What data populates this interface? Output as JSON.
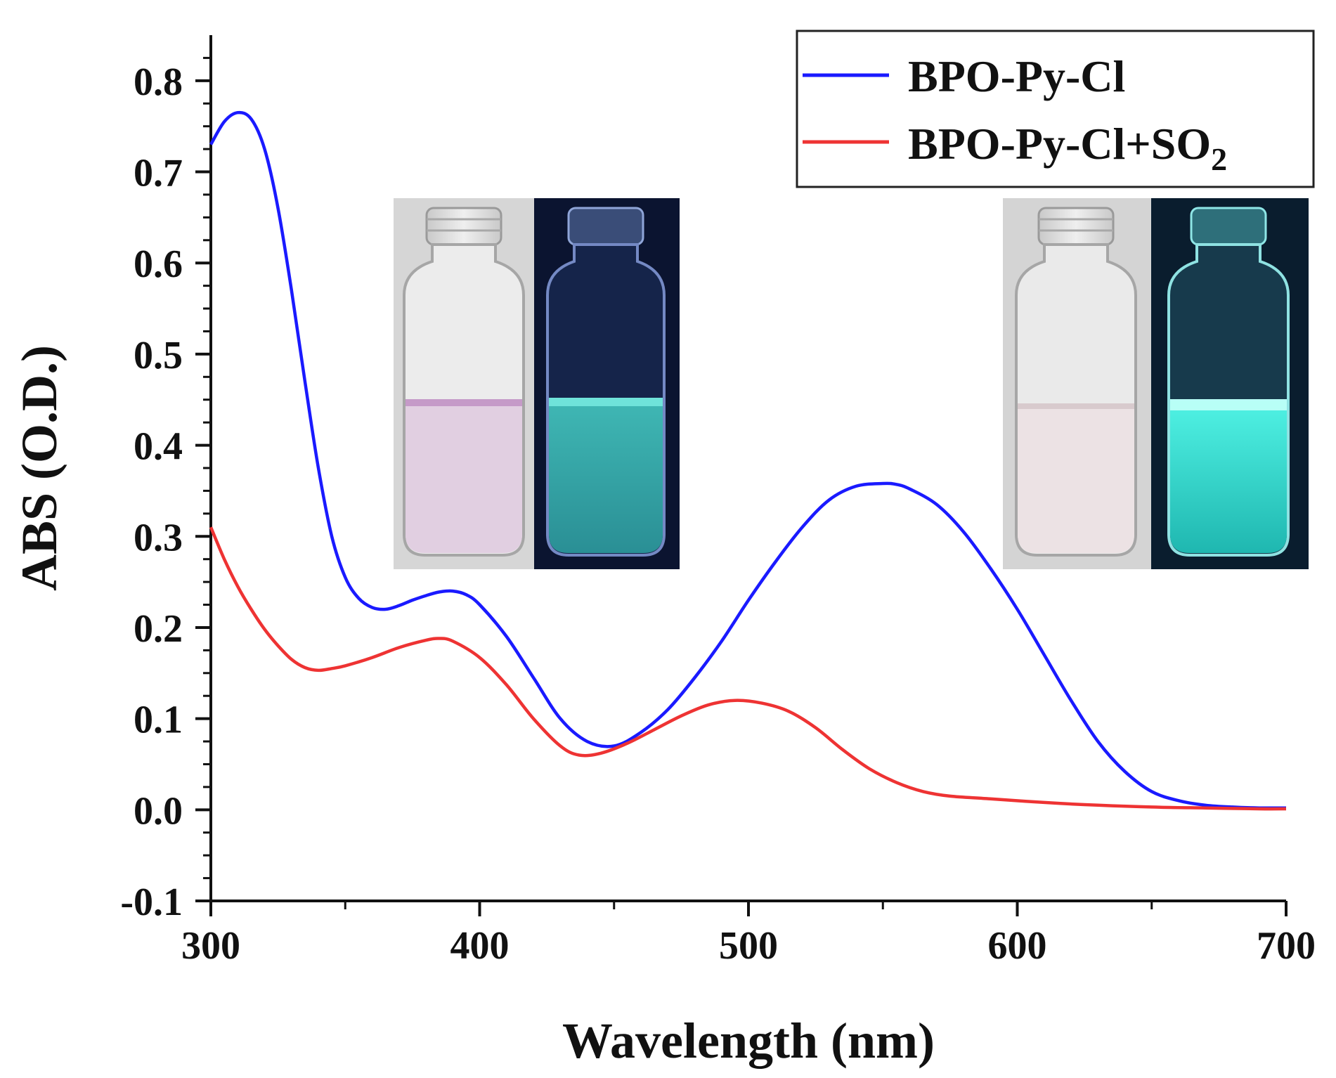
{
  "chart_data": {
    "type": "line",
    "title": "",
    "xlabel": "Wavelength (nm)",
    "ylabel": "ABS (O.D.)",
    "xlim": [
      300,
      700
    ],
    "ylim": [
      -0.1,
      0.85
    ],
    "xticks": [
      300,
      400,
      500,
      600,
      700
    ],
    "xtick_labels": [
      "300",
      "400",
      "500",
      "600",
      "700"
    ],
    "yticks": [
      -0.1,
      0.0,
      0.1,
      0.2,
      0.3,
      0.4,
      0.5,
      0.6,
      0.7,
      0.8
    ],
    "ytick_labels": [
      "-0.1",
      "0.0",
      "0.1",
      "0.2",
      "0.3",
      "0.4",
      "0.5",
      "0.6",
      "0.7",
      "0.8"
    ],
    "grid": false,
    "legend_position": "top-right",
    "series": [
      {
        "name": "BPO-Py-Cl",
        "color": "#1a1aff",
        "x": [
          300,
          305,
          310,
          315,
          320,
          325,
          330,
          335,
          340,
          345,
          350,
          355,
          360,
          365,
          370,
          375,
          380,
          385,
          390,
          395,
          400,
          410,
          420,
          430,
          440,
          450,
          460,
          470,
          480,
          490,
          500,
          510,
          520,
          530,
          540,
          550,
          555,
          560,
          570,
          580,
          590,
          600,
          610,
          620,
          630,
          640,
          650,
          660,
          670,
          680,
          690,
          700
        ],
        "y": [
          0.73,
          0.755,
          0.765,
          0.758,
          0.725,
          0.66,
          0.57,
          0.47,
          0.375,
          0.3,
          0.255,
          0.232,
          0.222,
          0.22,
          0.224,
          0.23,
          0.235,
          0.239,
          0.24,
          0.236,
          0.225,
          0.19,
          0.145,
          0.1,
          0.075,
          0.07,
          0.085,
          0.11,
          0.145,
          0.185,
          0.23,
          0.272,
          0.31,
          0.34,
          0.355,
          0.358,
          0.357,
          0.352,
          0.335,
          0.305,
          0.265,
          0.22,
          0.17,
          0.12,
          0.075,
          0.042,
          0.02,
          0.01,
          0.005,
          0.003,
          0.002,
          0.002
        ]
      },
      {
        "name": "BPO-Py-Cl+SO2",
        "color": "#ee3333",
        "x": [
          300,
          305,
          310,
          315,
          320,
          325,
          330,
          335,
          340,
          345,
          350,
          360,
          370,
          380,
          385,
          390,
          400,
          410,
          420,
          430,
          437,
          445,
          455,
          465,
          475,
          485,
          495,
          505,
          515,
          525,
          535,
          545,
          555,
          565,
          575,
          590,
          610,
          630,
          650,
          670,
          690,
          700
        ],
        "y": [
          0.31,
          0.275,
          0.245,
          0.22,
          0.198,
          0.18,
          0.165,
          0.156,
          0.153,
          0.155,
          0.158,
          0.167,
          0.178,
          0.186,
          0.188,
          0.185,
          0.167,
          0.137,
          0.1,
          0.07,
          0.06,
          0.062,
          0.073,
          0.088,
          0.103,
          0.115,
          0.12,
          0.117,
          0.108,
          0.09,
          0.066,
          0.045,
          0.03,
          0.02,
          0.015,
          0.012,
          0.008,
          0.005,
          0.003,
          0.002,
          0.001,
          0.001
        ]
      }
    ]
  },
  "legend": {
    "series1_label": "BPO-Py-Cl",
    "series2_label_main": "BPO-Py-Cl+SO",
    "series2_label_sub": "2"
  },
  "insets": {
    "left_photo": "vials-before-so2-icon",
    "right_photo": "vials-after-so2-icon"
  }
}
